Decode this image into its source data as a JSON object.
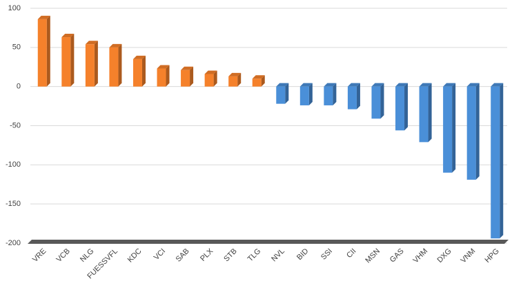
{
  "chart_data": {
    "type": "bar",
    "categories": [
      "VRE",
      "VCB",
      "NLG",
      "FUESSVFL",
      "KDC",
      "VCI",
      "SAB",
      "PLX",
      "STB",
      "TLG",
      "NVL",
      "BID",
      "SSI",
      "CII",
      "MSN",
      "GAS",
      "VHM",
      "DXG",
      "VNM",
      "HPG"
    ],
    "values": [
      86,
      63,
      54,
      50,
      35,
      23,
      21,
      16,
      13,
      10,
      -22,
      -24,
      -24,
      -29,
      -41,
      -56,
      -71,
      -110,
      -119,
      -194
    ],
    "positive_color": "#f5812b",
    "negative_color": "#4a8fd8",
    "ylim": [
      -200,
      100
    ],
    "yticks": [
      -200,
      -150,
      -100,
      -50,
      0,
      50,
      100
    ],
    "grid": true
  }
}
